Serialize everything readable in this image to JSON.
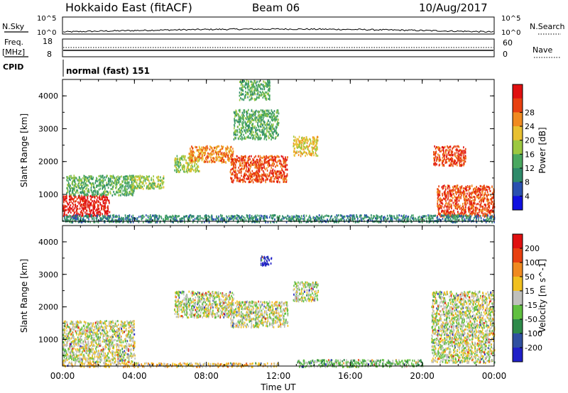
{
  "header": {
    "title": "Hokkaido East (fitACF)",
    "beam": "Beam 06",
    "date": "10/Aug/2017"
  },
  "panels": {
    "nsky": {
      "label": "N.Sky",
      "ticks": [
        "10^5",
        "10^0"
      ],
      "right_label": "N.Search",
      "right_ticks": [
        "10^5",
        "10^0"
      ]
    },
    "freq": {
      "label_line1": "Freq.",
      "label_line2": "[MHz]",
      "ticks": [
        "18",
        "8"
      ],
      "right_label": "Nave",
      "right_ticks": [
        "60",
        "0"
      ]
    },
    "cpid": {
      "label": "CPID",
      "text": "normal (fast) 151"
    }
  },
  "chart_data": [
    {
      "type": "heatmap",
      "ylabel": "Slant Range [km]",
      "xlabel": "",
      "x_ticks": [
        "00:00",
        "04:00",
        "08:00",
        "12:00",
        "16:00",
        "20:00",
        "00:00"
      ],
      "y_ticks": [
        "1000",
        "2000",
        "3000",
        "4000"
      ],
      "ylim": [
        180,
        4500
      ],
      "colorbar": {
        "label": "Power [dB]",
        "ticks": [
          "4",
          "8",
          "12",
          "16",
          "20",
          "24",
          "28"
        ],
        "colors": [
          "#1010e0",
          "#2a50b0",
          "#2e8a6a",
          "#4aa860",
          "#9cc840",
          "#e8c030",
          "#f08a20",
          "#e84010",
          "#e01010"
        ]
      },
      "regions": [
        {
          "t": [
            0.0,
            2.6
          ],
          "r": [
            350,
            1000
          ],
          "level": 8
        },
        {
          "t": [
            0.2,
            4.0
          ],
          "r": [
            1000,
            1600
          ],
          "level": 3
        },
        {
          "t": [
            3.8,
            5.6
          ],
          "r": [
            1200,
            1600
          ],
          "level": 4
        },
        {
          "t": [
            6.2,
            7.6
          ],
          "r": [
            1700,
            2200
          ],
          "level": 4
        },
        {
          "t": [
            7.0,
            9.5
          ],
          "r": [
            2000,
            2500
          ],
          "level": 6
        },
        {
          "t": [
            9.3,
            12.5
          ],
          "r": [
            1400,
            2200
          ],
          "level": 7
        },
        {
          "t": [
            12.8,
            14.2
          ],
          "r": [
            2200,
            2800
          ],
          "level": 5
        },
        {
          "t": [
            20.6,
            22.4
          ],
          "r": [
            1900,
            2500
          ],
          "level": 7
        },
        {
          "t": [
            20.8,
            24.0
          ],
          "r": [
            350,
            1300
          ],
          "level": 7
        },
        {
          "t": [
            9.5,
            12.0
          ],
          "r": [
            2700,
            3600
          ],
          "level": 3
        },
        {
          "t": [
            9.8,
            11.5
          ],
          "r": [
            3900,
            4500
          ],
          "level": 3
        },
        {
          "t": [
            0.0,
            24.0
          ],
          "r": [
            180,
            400
          ],
          "level": 2
        }
      ]
    },
    {
      "type": "heatmap",
      "ylabel": "Slant Range [km]",
      "xlabel": "Time UT",
      "x_ticks": [
        "00:00",
        "04:00",
        "08:00",
        "12:00",
        "16:00",
        "20:00",
        "00:00"
      ],
      "y_ticks": [
        "1000",
        "2000",
        "3000",
        "4000"
      ],
      "ylim": [
        180,
        4500
      ],
      "colorbar": {
        "label": "Velocity [m s^-1]",
        "ticks": [
          "200",
          "100",
          "50",
          "15",
          "-15",
          "-50",
          "-100",
          "-200"
        ],
        "colors": [
          "#2020c8",
          "#3050a0",
          "#2e8a4a",
          "#60c040",
          "#c0c0bc",
          "#f0c020",
          "#f08a20",
          "#e84010",
          "#e01010"
        ]
      },
      "regions": [
        {
          "t": [
            0.0,
            4.0
          ],
          "r": [
            300,
            1600
          ],
          "level": 4
        },
        {
          "t": [
            6.2,
            9.5
          ],
          "r": [
            1700,
            2500
          ],
          "level": 4
        },
        {
          "t": [
            9.3,
            12.5
          ],
          "r": [
            1400,
            2200
          ],
          "level": 4
        },
        {
          "t": [
            12.8,
            14.2
          ],
          "r": [
            2200,
            2800
          ],
          "level": 4
        },
        {
          "t": [
            20.5,
            24.0
          ],
          "r": [
            300,
            2500
          ],
          "level": 4
        },
        {
          "t": [
            11.0,
            11.6
          ],
          "r": [
            3300,
            3600
          ],
          "level": 0
        },
        {
          "t": [
            13.0,
            20.0
          ],
          "r": [
            180,
            400
          ],
          "level": 3
        },
        {
          "t": [
            0.0,
            12.0
          ],
          "r": [
            180,
            300
          ],
          "level": 5
        }
      ]
    }
  ]
}
